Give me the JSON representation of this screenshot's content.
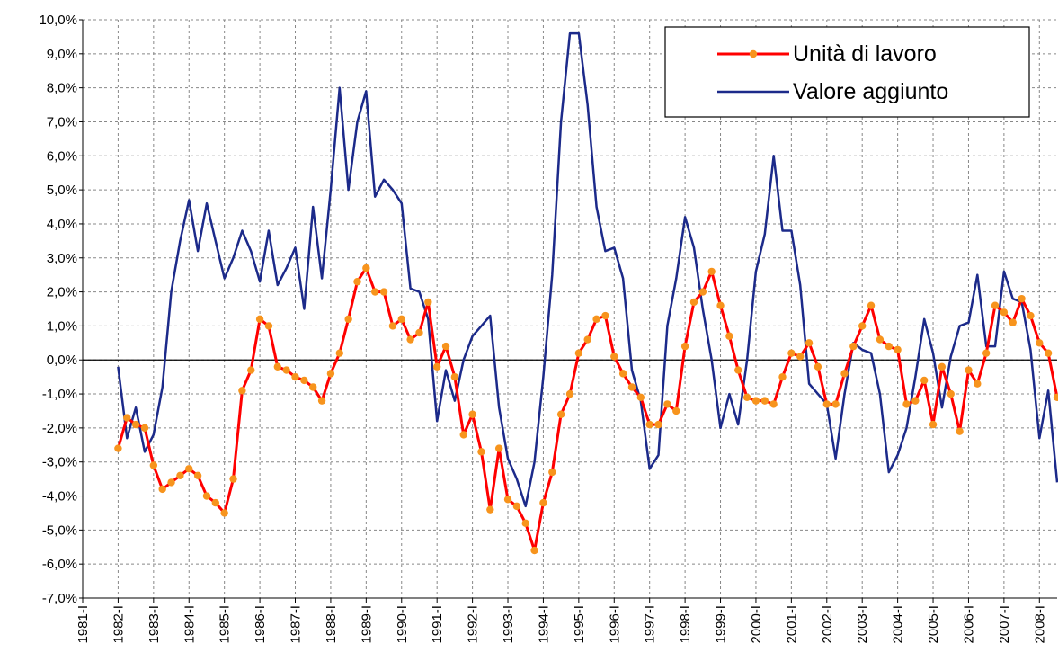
{
  "chart_data": {
    "type": "line",
    "categories": [
      "1981-I",
      null,
      null,
      null,
      "1982-I",
      null,
      null,
      null,
      "1983-I",
      null,
      null,
      null,
      "1984-I",
      null,
      null,
      null,
      "1985-I",
      null,
      null,
      null,
      "1986-I",
      null,
      null,
      null,
      "1987-I",
      null,
      null,
      null,
      "1988-I",
      null,
      null,
      null,
      "1989-I",
      null,
      null,
      null,
      "1990-I",
      null,
      null,
      null,
      "1991-I",
      null,
      null,
      null,
      "1992-I",
      null,
      null,
      null,
      "1993-I",
      null,
      null,
      null,
      "1994-I",
      null,
      null,
      null,
      "1995-I",
      null,
      null,
      null,
      "1996-I",
      null,
      null,
      null,
      "1997-I",
      null,
      null,
      null,
      "1998-I",
      null,
      null,
      null,
      "1999-I",
      null,
      null,
      null,
      "2000-I",
      null,
      null,
      null,
      "2001-I",
      null,
      null,
      null,
      "2002-I",
      null,
      null,
      null,
      "2003-I",
      null,
      null,
      null,
      "2004-I",
      null,
      null,
      null,
      "2005-I",
      null,
      null,
      null,
      "2006-I",
      null,
      null,
      null,
      "2007-I",
      null,
      null,
      null,
      "2008-I",
      null,
      null
    ],
    "series": [
      {
        "name": "Unità di lavoro",
        "color": "#ff0000",
        "marker_color": "#f7941d",
        "values": [
          null,
          null,
          null,
          null,
          -2.6,
          -1.7,
          -1.9,
          -2.0,
          -3.1,
          -3.8,
          -3.6,
          -3.4,
          -3.2,
          -3.4,
          -4.0,
          -4.2,
          -4.5,
          -3.5,
          -0.9,
          -0.3,
          1.2,
          1.0,
          -0.2,
          -0.3,
          -0.5,
          -0.6,
          -0.8,
          -1.2,
          -0.4,
          0.2,
          1.2,
          2.3,
          2.7,
          2.0,
          2.0,
          1.0,
          1.2,
          0.6,
          0.8,
          1.7,
          -0.2,
          0.4,
          -0.5,
          -2.2,
          -1.6,
          -2.7,
          -4.4,
          -2.6,
          -4.1,
          -4.3,
          -4.8,
          -5.6,
          -4.2,
          -3.3,
          -1.6,
          -1.0,
          0.2,
          0.6,
          1.2,
          1.3,
          0.1,
          -0.4,
          -0.8,
          -1.1,
          -1.9,
          -1.9,
          -1.3,
          -1.5,
          0.4,
          1.7,
          2.0,
          2.6,
          1.6,
          0.7,
          -0.3,
          -1.1,
          -1.2,
          -1.2,
          -1.3,
          -0.5,
          0.2,
          0.1,
          0.5,
          -0.2,
          -1.3,
          -1.3,
          -0.4,
          0.4,
          1.0,
          1.6,
          0.6,
          0.4,
          0.3,
          -1.3,
          -1.2,
          -0.6,
          -1.9,
          -0.2,
          -1.0,
          -2.1,
          -0.3,
          -0.7,
          0.2,
          1.6,
          1.4,
          1.1,
          1.8,
          1.3,
          0.5,
          0.2,
          -1.1
        ]
      },
      {
        "name": "Valore aggiunto",
        "color": "#1c2a8a",
        "values": [
          null,
          null,
          null,
          null,
          -0.2,
          -2.3,
          -1.4,
          -2.7,
          -2.2,
          -0.8,
          2.0,
          3.5,
          4.7,
          3.2,
          4.6,
          3.5,
          2.4,
          3.0,
          3.8,
          3.2,
          2.3,
          3.8,
          2.2,
          2.7,
          3.3,
          1.5,
          4.5,
          2.4,
          5.0,
          8.0,
          5.0,
          7.0,
          7.9,
          4.8,
          5.3,
          5.0,
          4.6,
          2.1,
          2.0,
          1.2,
          -1.8,
          -0.3,
          -1.2,
          0.0,
          0.7,
          1.0,
          1.3,
          -1.4,
          -2.9,
          -3.5,
          -4.3,
          -3.0,
          -0.5,
          2.5,
          7.0,
          9.6,
          9.6,
          7.5,
          4.5,
          3.2,
          3.3,
          2.4,
          -0.3,
          -1.2,
          -3.2,
          -2.8,
          1.0,
          2.4,
          4.2,
          3.3,
          1.5,
          0.0,
          -2.0,
          -1.0,
          -1.9,
          0.0,
          2.6,
          3.7,
          6.0,
          3.8,
          3.8,
          2.2,
          -0.7,
          -1.0,
          -1.3,
          -2.9,
          -1.0,
          0.5,
          0.3,
          0.2,
          -1.0,
          -3.3,
          -2.8,
          -2.0,
          -0.5,
          1.2,
          0.2,
          -1.4,
          0.1,
          1.0,
          1.1,
          2.5,
          0.4,
          0.4,
          2.6,
          1.8,
          1.7,
          0.3,
          -2.3,
          -0.9,
          -3.6
        ]
      }
    ],
    "ylim": [
      -7,
      10
    ],
    "yticks": [
      {
        "value": -7,
        "label": "-7,0%"
      },
      {
        "value": -6,
        "label": "-6,0%"
      },
      {
        "value": -5,
        "label": "-5,0%"
      },
      {
        "value": -4,
        "label": "-4,0%"
      },
      {
        "value": -3,
        "label": "-3,0%"
      },
      {
        "value": -2,
        "label": "-2,0%"
      },
      {
        "value": -1,
        "label": "-1,0%"
      },
      {
        "value": 0,
        "label": "0,0%"
      },
      {
        "value": 1,
        "label": "1,0%"
      },
      {
        "value": 2,
        "label": "2,0%"
      },
      {
        "value": 3,
        "label": "3,0%"
      },
      {
        "value": 4,
        "label": "4,0%"
      },
      {
        "value": 5,
        "label": "5,0%"
      },
      {
        "value": 6,
        "label": "6,0%"
      },
      {
        "value": 7,
        "label": "7,0%"
      },
      {
        "value": 8,
        "label": "8,0%"
      },
      {
        "value": 9,
        "label": "9,0%"
      },
      {
        "value": 10,
        "label": "10,0%"
      }
    ],
    "grid": true,
    "legend": "top-right"
  }
}
